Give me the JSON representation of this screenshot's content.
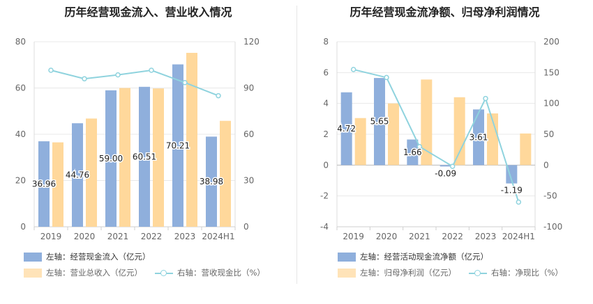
{
  "chart_data": [
    {
      "type": "bar",
      "title": "历年经营现金流入、营业收入情况",
      "categories": [
        "2019",
        "2020",
        "2021",
        "2022",
        "2023",
        "2024H1"
      ],
      "left_axis": {
        "min": 0,
        "max": 80,
        "ticks": [
          "0",
          "20",
          "40",
          "60",
          "80"
        ]
      },
      "right_axis": {
        "min": 0,
        "max": 120,
        "ticks": [
          "0",
          "30",
          "60",
          "90",
          "120"
        ]
      },
      "series": [
        {
          "name": "左轴：经营现金流入（亿元）",
          "axis": "left",
          "kind": "bar",
          "color": "#8fafdc",
          "values": [
            36.96,
            44.76,
            59.0,
            60.51,
            70.21,
            38.98
          ],
          "labels": [
            "36.96",
            "44.76",
            "59.00",
            "60.51",
            "70.21",
            "38.98"
          ]
        },
        {
          "name": "左轴：营业总收入（亿元）",
          "axis": "left",
          "kind": "bar",
          "color": "#ffd89b",
          "values": [
            36.5,
            46.8,
            60.0,
            59.8,
            75.2,
            45.8
          ]
        },
        {
          "name": "右轴：营收现金比（%）",
          "axis": "right",
          "kind": "line",
          "color": "#8fd3de",
          "values": [
            101.5,
            96.0,
            98.5,
            101.5,
            93.5,
            85.0
          ]
        }
      ]
    },
    {
      "type": "bar",
      "title": "历年经营现金流净额、归母净利润情况",
      "categories": [
        "2019",
        "2020",
        "2021",
        "2022",
        "2023",
        "2024H1"
      ],
      "left_axis": {
        "min": -4,
        "max": 8,
        "ticks": [
          "-4",
          "-2",
          "0",
          "2",
          "4",
          "6",
          "8"
        ]
      },
      "right_axis": {
        "min": -100,
        "max": 200,
        "ticks": [
          "-100",
          "-50",
          "0",
          "50",
          "100",
          "150",
          "200"
        ]
      },
      "series": [
        {
          "name": "左轴：经营活动现金流净额（亿元）",
          "axis": "left",
          "kind": "bar",
          "color": "#8fafdc",
          "values": [
            4.72,
            5.65,
            1.66,
            -0.09,
            3.61,
            -1.19
          ],
          "labels": [
            "4.72",
            "5.65",
            "1.66",
            "-0.09",
            "3.61",
            "-1.19"
          ]
        },
        {
          "name": "左轴：归母净利润（亿元）",
          "axis": "left",
          "kind": "bar",
          "color": "#ffd89b",
          "values": [
            3.05,
            4.0,
            5.55,
            4.4,
            3.35,
            2.05
          ]
        },
        {
          "name": "右轴：净现比（%）",
          "axis": "right",
          "kind": "line",
          "color": "#8fd3de",
          "values": [
            155,
            142,
            30,
            -2,
            108,
            -60
          ]
        }
      ]
    }
  ]
}
